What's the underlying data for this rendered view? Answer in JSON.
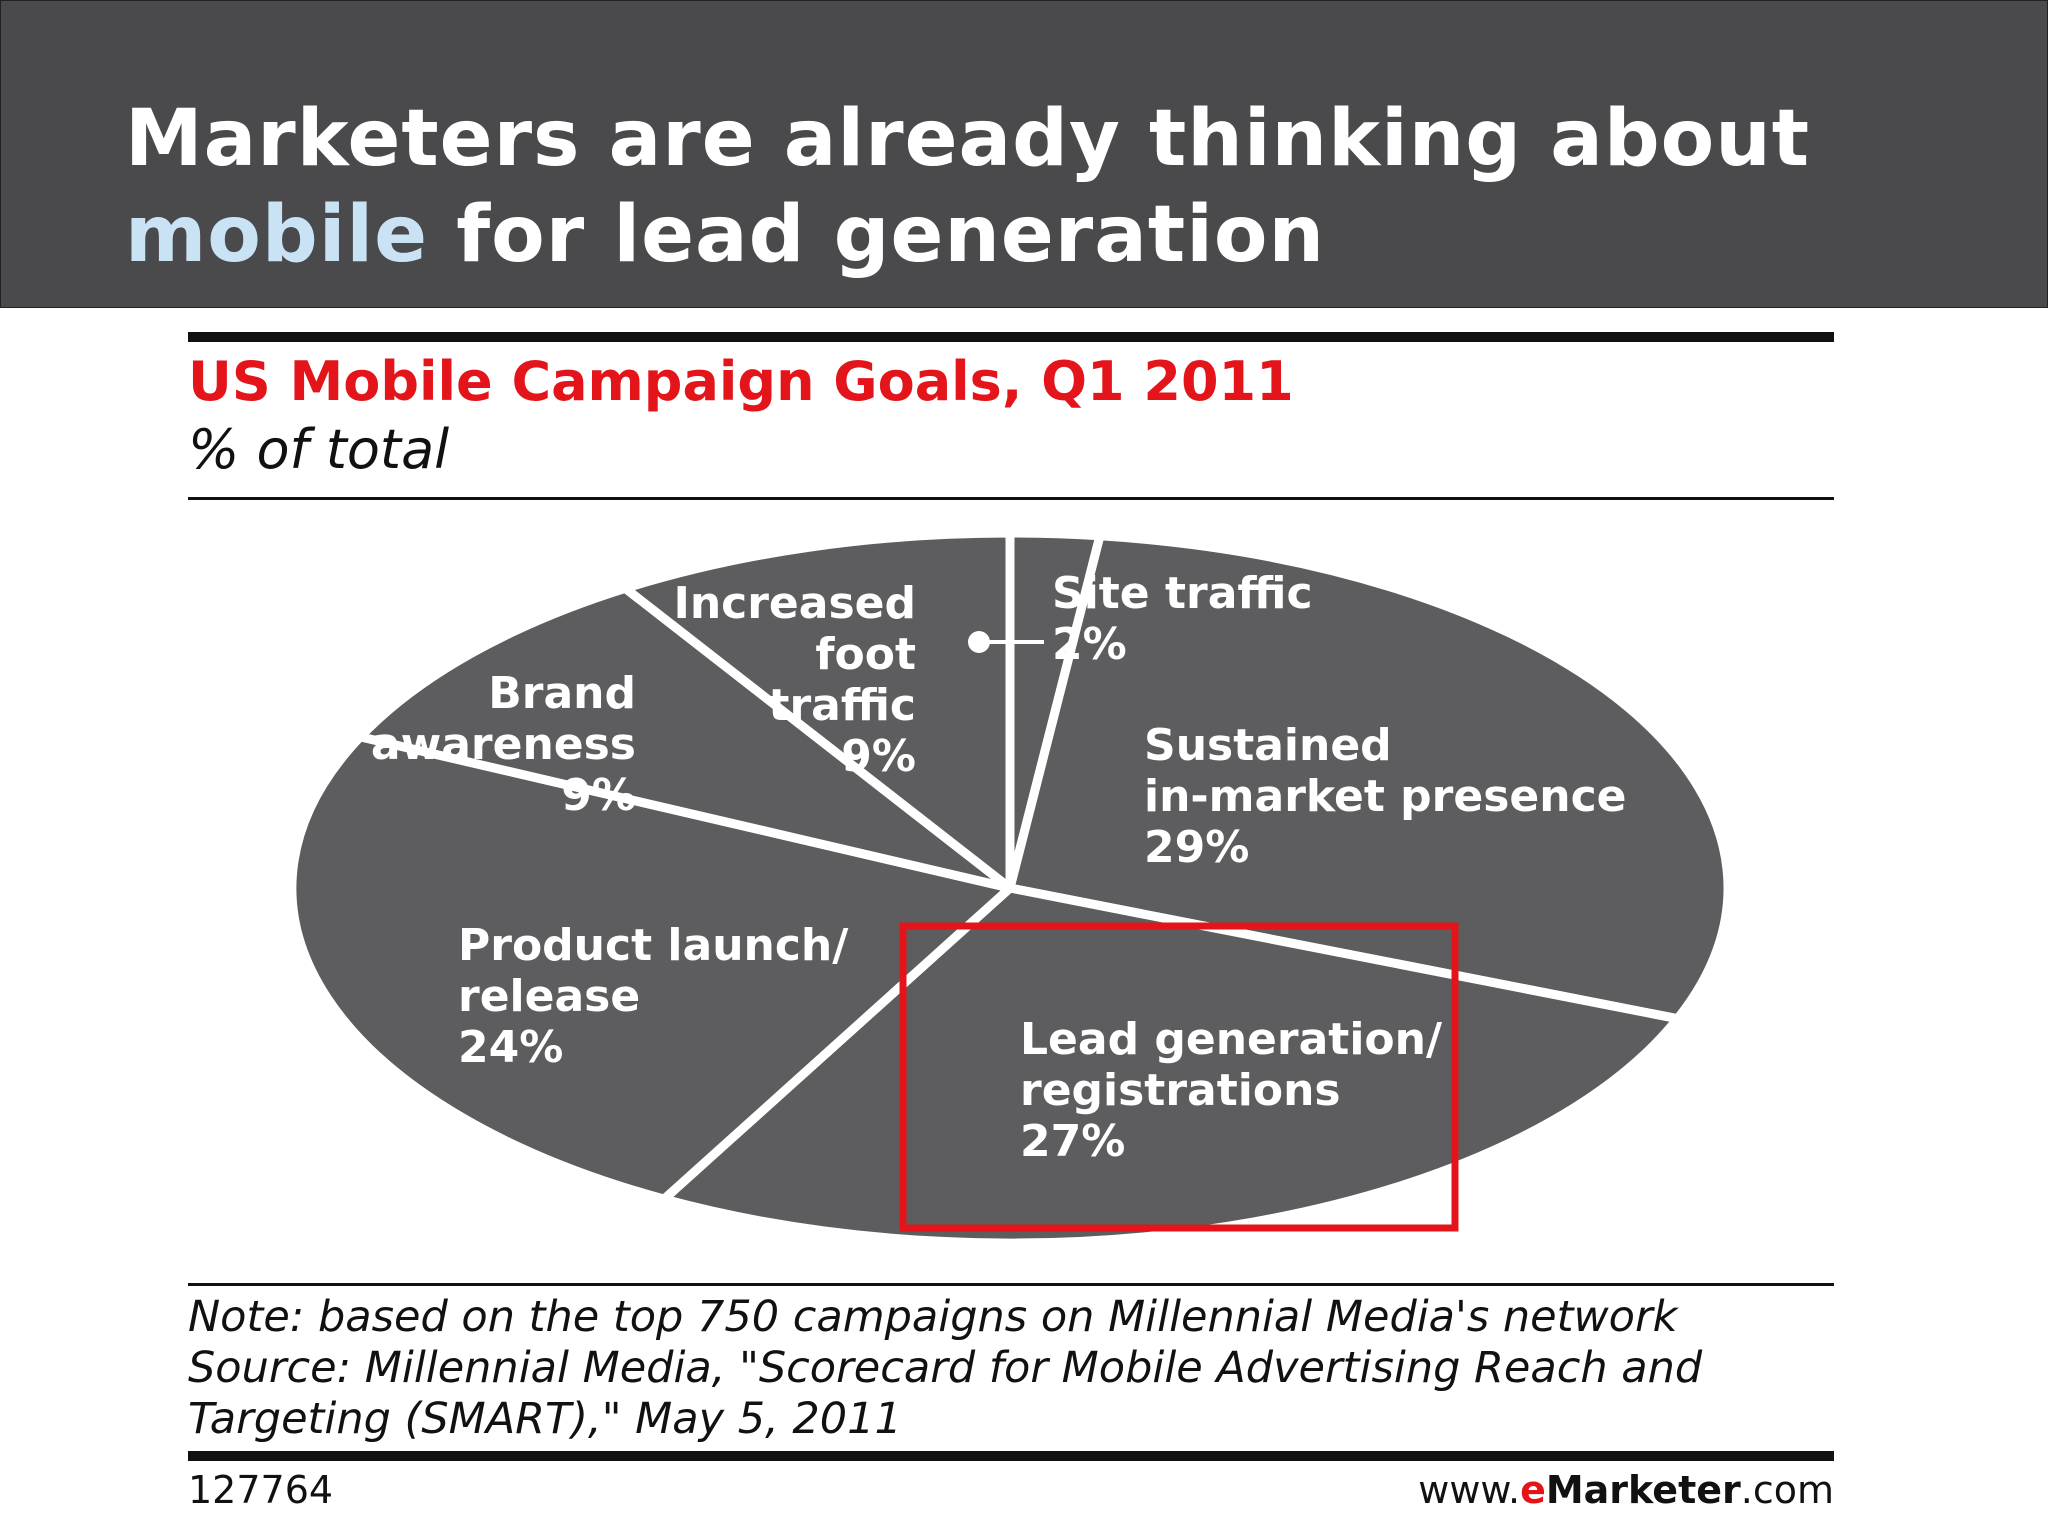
{
  "slide": {
    "title_part1": "Marketers are already thinking about",
    "title_highlight": "mobile",
    "title_part2": " for lead generation",
    "highlight_color": "#c9e3f5"
  },
  "chart_data": {
    "type": "pie",
    "title": "US Mobile Campaign Goals, Q1 2011",
    "subtitle": "% of total",
    "slices": [
      {
        "label_lines": [
          "Site traffic",
          "2%"
        ],
        "value": 2
      },
      {
        "label_lines": [
          "Sustained",
          "in-market presence",
          "29%"
        ],
        "value": 29
      },
      {
        "label_lines": [
          "Lead generation/",
          "registrations",
          "27%"
        ],
        "value": 27,
        "highlighted": true
      },
      {
        "label_lines": [
          "Product launch/",
          "release",
          "24%"
        ],
        "value": 24
      },
      {
        "label_lines": [
          "Brand",
          "awareness",
          "9%"
        ],
        "value": 9
      },
      {
        "label_lines": [
          "Increased",
          "foot",
          "traffic",
          "9%"
        ],
        "value": 9
      }
    ],
    "slice_color": "#5d5d5f",
    "highlight_box_color": "#e3151a"
  },
  "footer": {
    "note": "Note: based on the top 750 campaigns on Millennial Media's network",
    "source_line1": "Source: Millennial Media, \"Scorecard for Mobile Advertising Reach and",
    "source_line2": "Targeting (SMART),\" May 5, 2011",
    "chart_id": "127764",
    "url_prefix": "www.",
    "url_e": "e",
    "url_brand": "Marketer",
    "url_suffix": ".com"
  }
}
